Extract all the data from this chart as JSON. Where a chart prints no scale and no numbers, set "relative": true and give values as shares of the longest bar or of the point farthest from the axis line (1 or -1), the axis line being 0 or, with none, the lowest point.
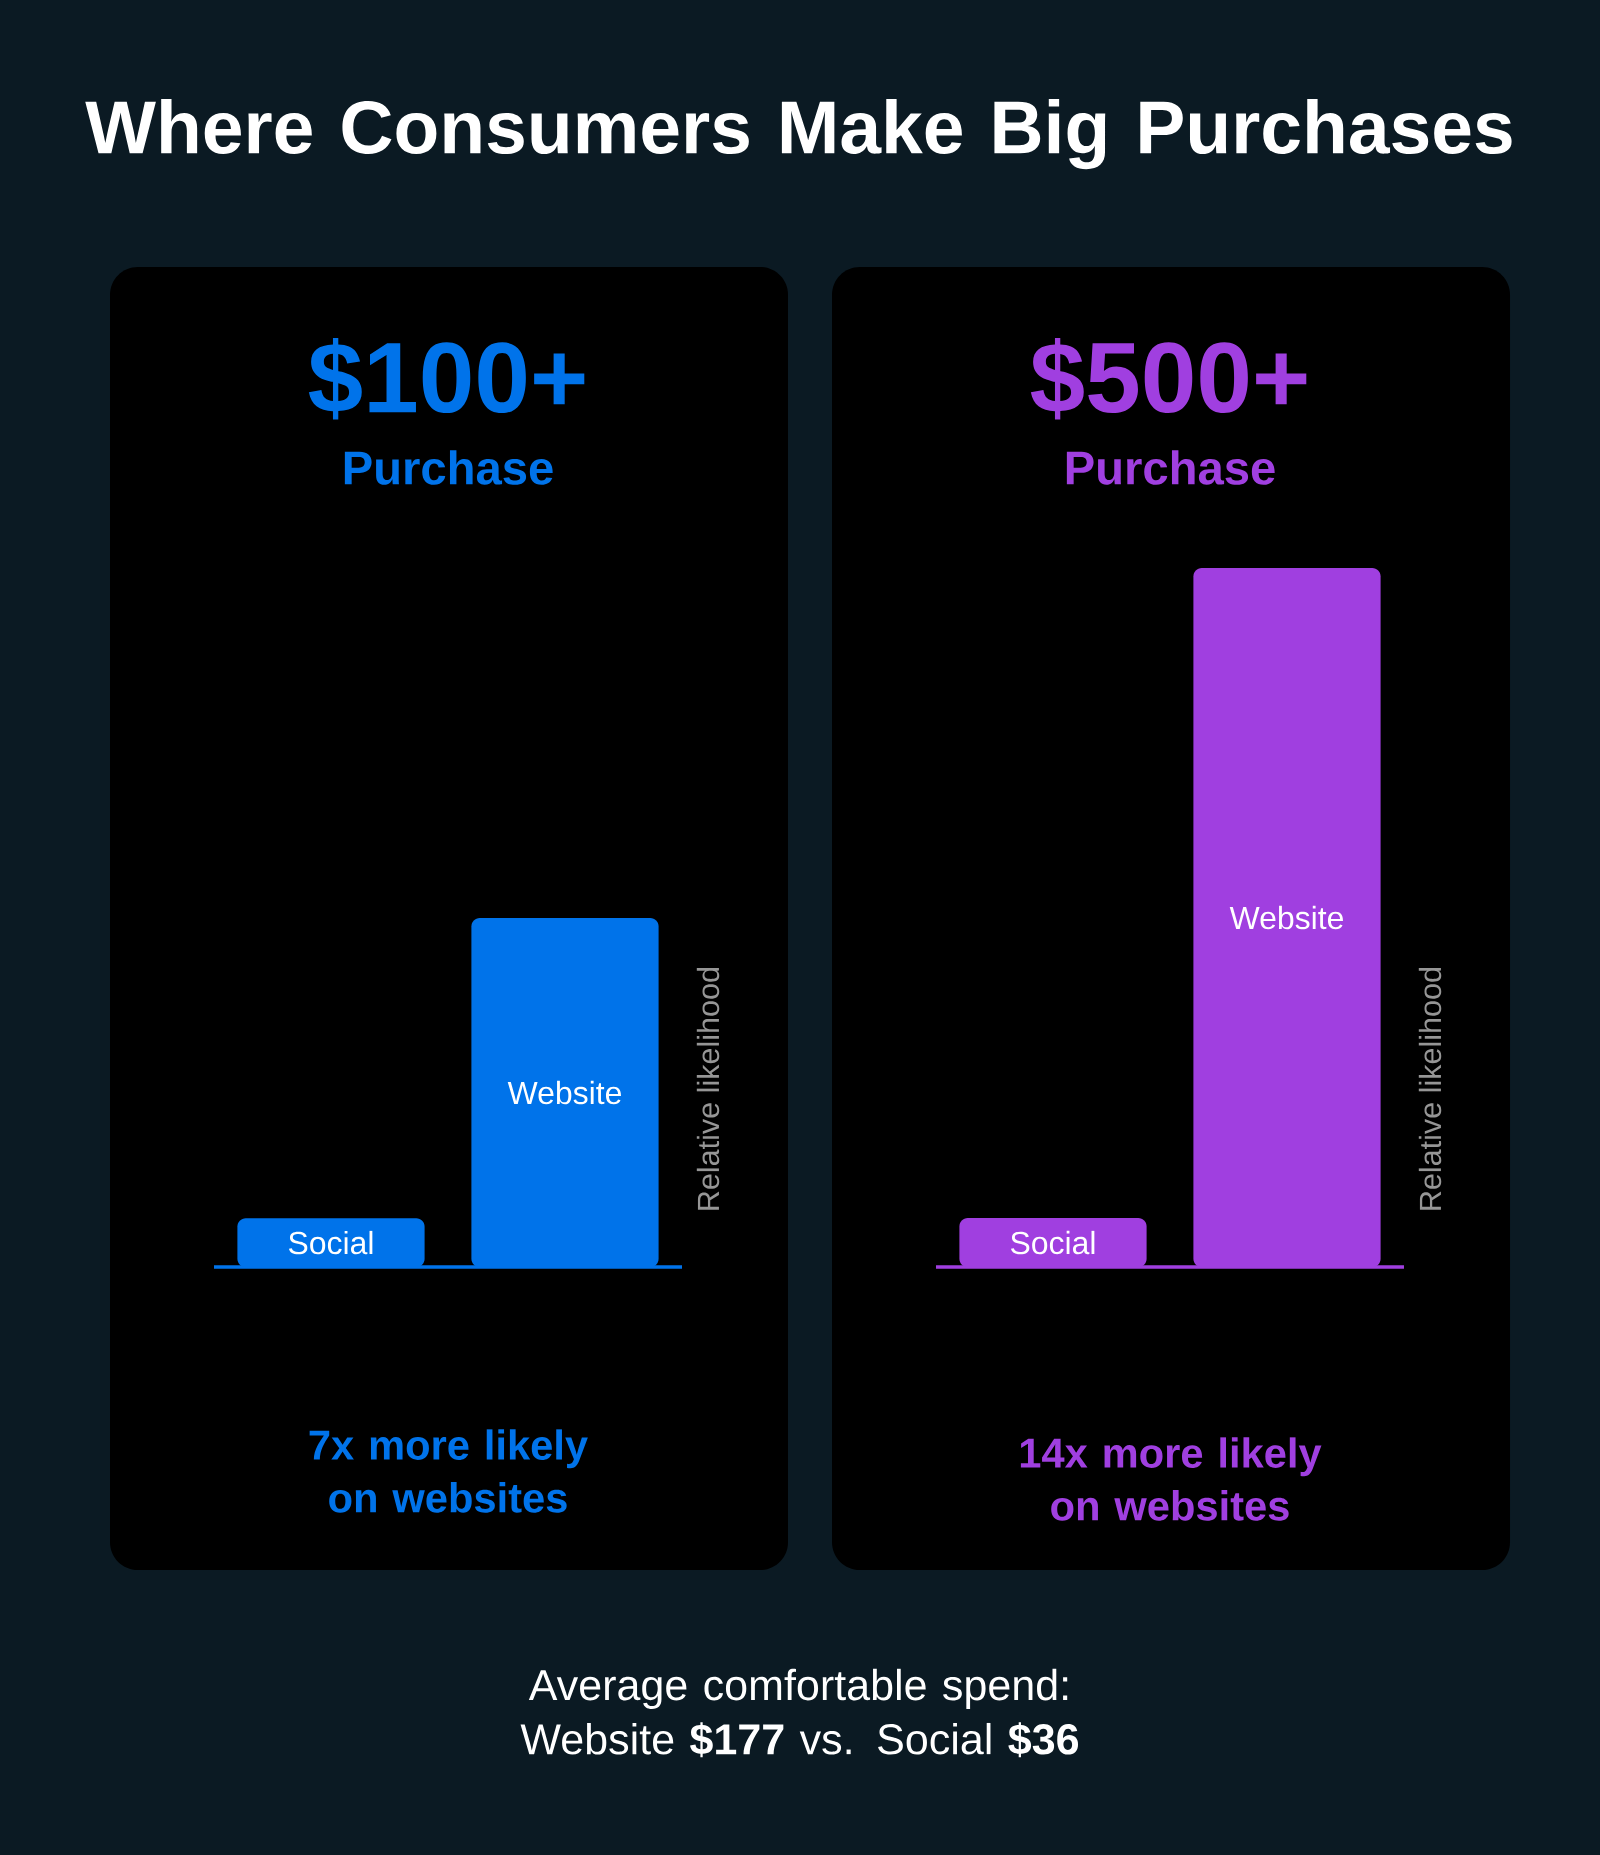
{
  "chart_data": [
    {
      "type": "bar",
      "title": "$100+",
      "subtitle": "Purchase",
      "ylabel": "Relative likelihood",
      "categories": [
        "Social",
        "Website"
      ],
      "values": [
        0.14,
        1
      ],
      "color": "#0073ea",
      "relative": true,
      "annotations": [
        "7x more likely on websites",
        "Where Consumers Make Big Purchases"
      ]
    },
    {
      "type": "bar",
      "title": "$500+",
      "subtitle": "Purchase",
      "ylabel": "Relative likelihood",
      "categories": [
        "Social",
        "Website"
      ],
      "values": [
        0.07,
        1
      ],
      "color": "#a03fe0",
      "relative": true,
      "annotations": [
        "14x more likely on websites",
        "Average comfortable spend: Website **$177** vs. Social **$36**"
      ]
    }
  ]
}
